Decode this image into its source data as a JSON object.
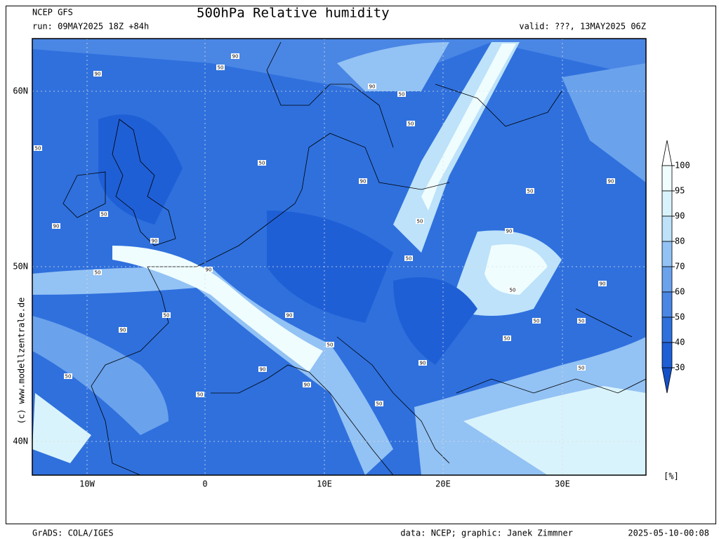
{
  "header": {
    "model": "NCEP GFS",
    "title": "500hPa Relative humidity",
    "run": "run: 09MAY2025 18Z +84h",
    "valid": "valid: ???, 13MAY2025 06Z"
  },
  "map": {
    "lat_labels": [
      "60N",
      "50N",
      "40N"
    ],
    "lon_labels": [
      "10W",
      "0",
      "10E",
      "20E",
      "30E"
    ],
    "credit": "(c) www.modellzentrale.de",
    "contour_labels": [
      90,
      50,
      90,
      90,
      50,
      50,
      50,
      50,
      90,
      90,
      50,
      50,
      90,
      50,
      90,
      90,
      50,
      90,
      50,
      90,
      50,
      50,
      90,
      90,
      50,
      50,
      50,
      50,
      90,
      90,
      50,
      50,
      90,
      50,
      50
    ]
  },
  "colorbar": {
    "ticks": [
      100,
      95,
      90,
      80,
      70,
      60,
      50,
      40,
      30
    ],
    "colors": [
      "#1450c8",
      "#1f5fd6",
      "#2f70dd",
      "#4a86e4",
      "#6aa2ec",
      "#93c2f4",
      "#bde2f9",
      "#d9f3fc",
      "#effdff",
      "#ffffff"
    ],
    "unit": "[%]"
  },
  "footer": {
    "left": "GrADS: COLA/IGES",
    "center": "data: NCEP; graphic: Janek Zimmner",
    "right": "2025-05-10-00:08"
  }
}
